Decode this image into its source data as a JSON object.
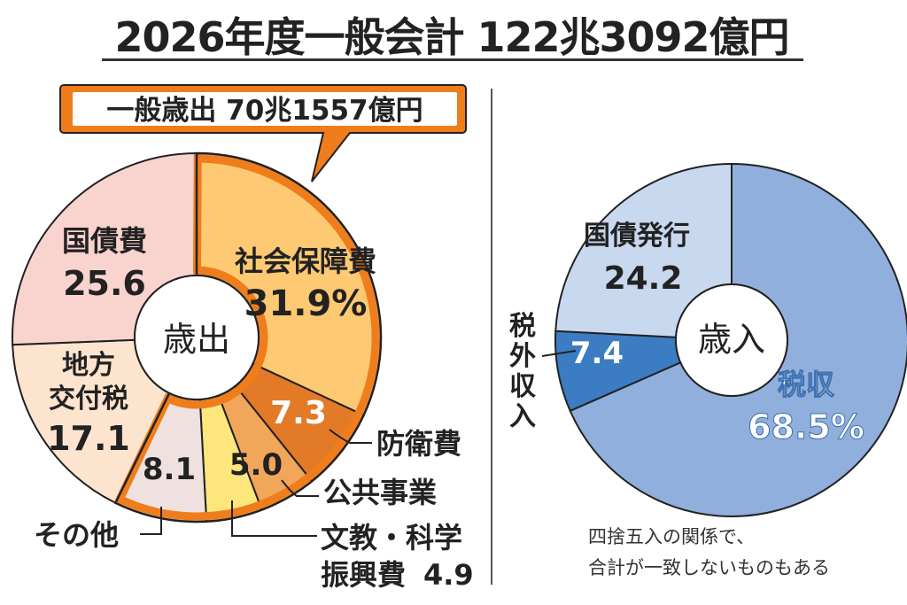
{
  "chart_data": [
    {
      "type": "pie",
      "title": "2026年度一般会計 122兆3092億円",
      "center_label": "歳出",
      "unit": "%",
      "highlight_group": {
        "label": "一般歳出 70兆1557億円",
        "members": [
          "社会保障費",
          "防衛費",
          "公共事業",
          "文教・科学振興費",
          "その他"
        ]
      },
      "slices": [
        {
          "name": "社会保障費",
          "value": 31.9,
          "label": "31.9%",
          "color": "#fdc972"
        },
        {
          "name": "防衛費",
          "value": 7.3,
          "label": "7.3",
          "color": "#e27a28"
        },
        {
          "name": "公共事業",
          "value": 5.0,
          "label": "5.0",
          "color": "#f1a65a"
        },
        {
          "name": "文教・科学振興費",
          "value": 4.9,
          "label": "4.9",
          "color": "#fde67c"
        },
        {
          "name": "その他",
          "value": 8.1,
          "label": "8.1",
          "color": "#eee1df"
        },
        {
          "name": "地方交付税",
          "value": 17.1,
          "label": "17.1",
          "color": "#fde4cf"
        },
        {
          "name": "国債費",
          "value": 25.6,
          "label": "25.6",
          "color": "#f9d4cf"
        }
      ]
    },
    {
      "type": "pie",
      "center_label": "歳入",
      "unit": "%",
      "slices": [
        {
          "name": "税収",
          "value": 68.5,
          "label": "68.5%",
          "color": "#91afdc"
        },
        {
          "name": "税外収入",
          "value": 7.4,
          "label": "7.4",
          "color": "#3b7cc3"
        },
        {
          "name": "国債発行",
          "value": 24.2,
          "label": "24.2",
          "color": "#c8d8ef"
        }
      ]
    }
  ],
  "labels": {
    "title": "2026年度一般会計 122兆3092億円",
    "callout": "一般歳出 70兆1557億円",
    "shakai_name": "社会保障費",
    "kokusaihi_name": "国債費",
    "chiho_l1": "地方",
    "chiho_l2": "交付税",
    "boei_name": "防衛費",
    "koukyo_name": "公共事業",
    "bunkyo_l1": "文教・科学",
    "bunkyo_l2": "振興費",
    "sonota_name": "その他",
    "zeishu_name": "税収",
    "kokusai_hakko_name": "国債発行",
    "zeigai_chars": [
      "税",
      "外",
      "収",
      "入"
    ],
    "note_l1": "四捨五入の関係で、",
    "note_l2": "合計が一致しないものもある"
  },
  "accent": {
    "orange": "#ef7d1c",
    "outline": "#222222"
  }
}
